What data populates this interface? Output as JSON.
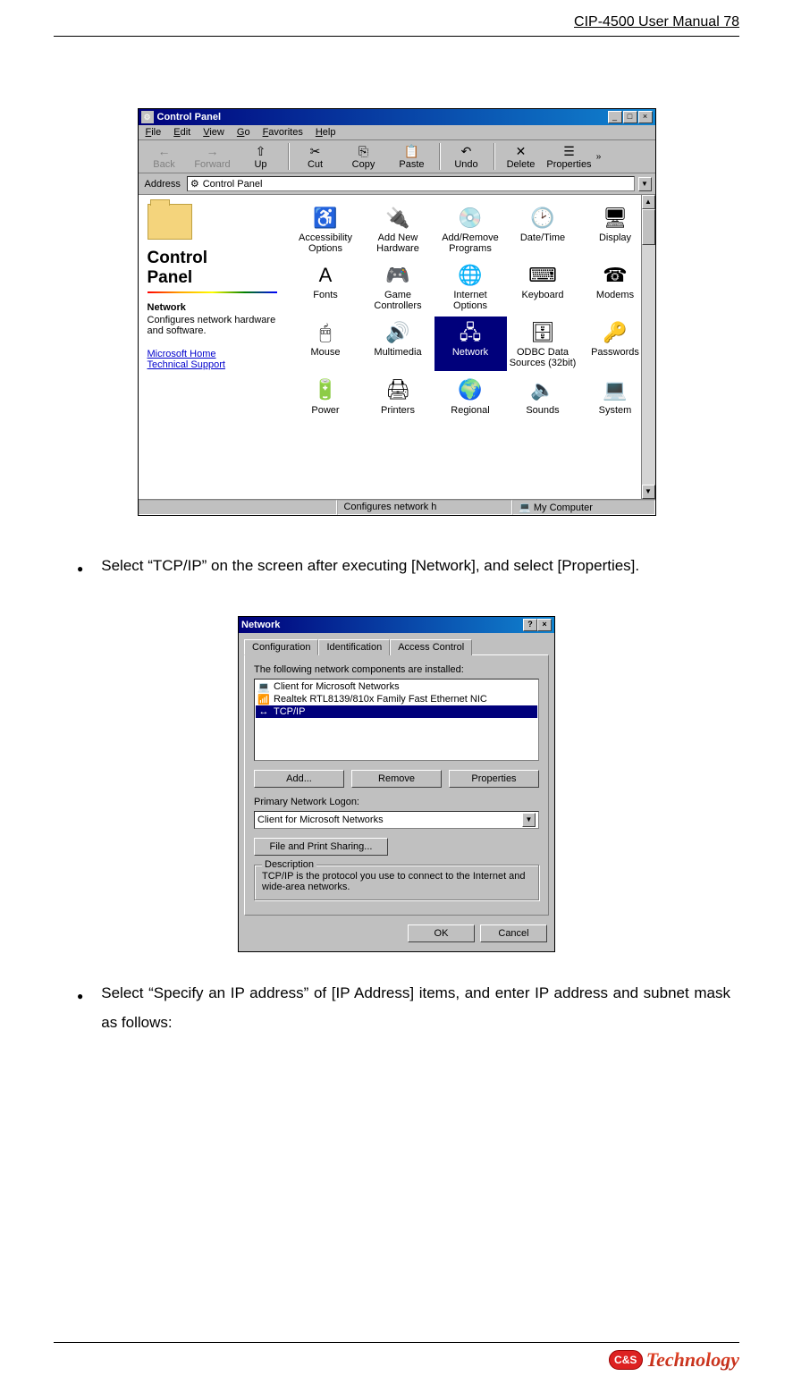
{
  "header": {
    "text": "CIP-4500 User Manual 78"
  },
  "control_panel": {
    "title": "Control Panel",
    "menus": [
      {
        "u": "F",
        "rest": "ile"
      },
      {
        "u": "E",
        "rest": "dit"
      },
      {
        "u": "V",
        "rest": "iew"
      },
      {
        "u": "G",
        "rest": "o"
      },
      {
        "u": "F",
        "rest": "avorites"
      },
      {
        "u": "H",
        "rest": "elp"
      }
    ],
    "toolbar": [
      {
        "label": "Back",
        "icon": "←",
        "disabled": true
      },
      {
        "label": "Forward",
        "icon": "→",
        "disabled": true
      },
      {
        "label": "Up",
        "icon": "⇧",
        "disabled": false
      },
      {
        "sep": true
      },
      {
        "label": "Cut",
        "icon": "✂",
        "disabled": false
      },
      {
        "label": "Copy",
        "icon": "⎘",
        "disabled": false
      },
      {
        "label": "Paste",
        "icon": "📋",
        "disabled": false
      },
      {
        "sep": true
      },
      {
        "label": "Undo",
        "icon": "↶",
        "disabled": false
      },
      {
        "sep": true
      },
      {
        "label": "Delete",
        "icon": "✕",
        "disabled": false
      },
      {
        "label": "Properties",
        "icon": "☰",
        "disabled": false
      }
    ],
    "address_label": "Address",
    "address_value": "Control Panel",
    "left": {
      "heading": "Control",
      "heading2": "Panel",
      "item_title": "Network",
      "item_desc": "Configures network hardware and software.",
      "link1": "Microsoft Home",
      "link2": "Technical Support"
    },
    "items": [
      {
        "label": "Accessibility Options",
        "icon": "♿"
      },
      {
        "label": "Add New Hardware",
        "icon": "🔌"
      },
      {
        "label": "Add/Remove Programs",
        "icon": "💿"
      },
      {
        "label": "Date/Time",
        "icon": "🕑"
      },
      {
        "label": "Display",
        "icon": "🖥"
      },
      {
        "label": "Fonts",
        "icon": "A"
      },
      {
        "label": "Game Controllers",
        "icon": "🎮"
      },
      {
        "label": "Internet Options",
        "icon": "🌐"
      },
      {
        "label": "Keyboard",
        "icon": "⌨"
      },
      {
        "label": "Modems",
        "icon": "☎"
      },
      {
        "label": "Mouse",
        "icon": "🖱"
      },
      {
        "label": "Multimedia",
        "icon": "🔊"
      },
      {
        "label": "Network",
        "icon": "🖧",
        "selected": true
      },
      {
        "label": "ODBC Data Sources (32bit)",
        "icon": "🗄"
      },
      {
        "label": "Passwords",
        "icon": "🔑"
      },
      {
        "label": "Power",
        "icon": "🔋"
      },
      {
        "label": "Printers",
        "icon": "🖨"
      },
      {
        "label": "Regional",
        "icon": "🌍"
      },
      {
        "label": "Sounds",
        "icon": "🔈"
      },
      {
        "label": "System",
        "icon": "💻"
      }
    ],
    "status_left": "",
    "status_mid": "Configures network h",
    "status_right": "My Computer"
  },
  "bullet1": "Select “TCP/IP” on the screen after executing [Network], and select [Properties].",
  "network_dialog": {
    "title": "Network",
    "tabs": [
      "Configuration",
      "Identification",
      "Access Control"
    ],
    "active_tab": 0,
    "list_label": "The following network components are installed:",
    "components": [
      {
        "icon": "💻",
        "label": "Client for Microsoft Networks"
      },
      {
        "icon": "📶",
        "label": "Realtek RTL8139/810x Family Fast Ethernet NIC"
      },
      {
        "icon": "↔",
        "label": "TCP/IP",
        "selected": true
      }
    ],
    "add": "Add...",
    "remove": "Remove",
    "properties": "Properties",
    "logon_label": "Primary Network Logon:",
    "logon_value": "Client for Microsoft Networks",
    "fps": "File and Print Sharing...",
    "desc_title": "Description",
    "desc": "TCP/IP is the protocol you use to connect to the Internet and wide-area networks.",
    "ok": "OK",
    "cancel": "Cancel"
  },
  "bullet2": "Select “Specify an IP address” of [IP Address] items, and enter IP address and subnet mask as follows:",
  "footer": {
    "badge": "C&S",
    "word": "Technology"
  }
}
